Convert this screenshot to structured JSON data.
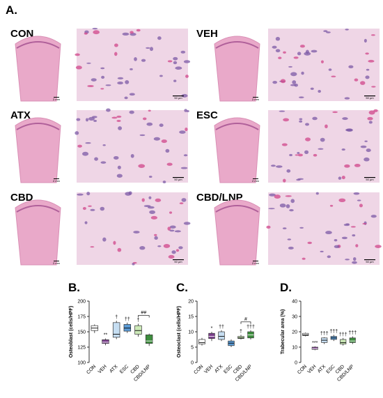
{
  "figure_label": "A.",
  "scale_bars": {
    "bone": "2 mm",
    "micro": "50 µm"
  },
  "groups": [
    "CON",
    "VEH",
    "ATX",
    "ESC",
    "CBD",
    "CBD/LNP"
  ],
  "chart_data": [
    {
      "type": "box",
      "panel": "B.",
      "y_label": "Osteoblast (cells/HPF)",
      "categories": [
        "CON",
        "VEH",
        "ATX",
        "ESC",
        "CBD",
        "CBD/LNP"
      ],
      "colors": [
        "#ffffff",
        "#7b3f8c",
        "#c6def2",
        "#5b9bd5",
        "#cdeab8",
        "#3e8e3e"
      ],
      "boxes": [
        {
          "min": 148,
          "q1": 152,
          "median": 156,
          "q3": 160,
          "max": 162
        },
        {
          "min": 128,
          "q1": 131,
          "median": 133,
          "q3": 137,
          "max": 139
        },
        {
          "min": 138,
          "q1": 141,
          "median": 146,
          "q3": 165,
          "max": 168
        },
        {
          "min": 148,
          "q1": 151,
          "median": 156,
          "q3": 162,
          "max": 165
        },
        {
          "min": 142,
          "q1": 146,
          "median": 152,
          "q3": 160,
          "max": 163
        },
        {
          "min": 127,
          "q1": 131,
          "median": 135,
          "q3": 145,
          "max": 147
        }
      ],
      "significance": [
        null,
        "**",
        "†",
        "††",
        "†",
        null
      ],
      "bracket": {
        "from": "CBD",
        "to": "CBD/LNP",
        "label": "##"
      },
      "ylim": [
        100,
        200
      ],
      "yticks": [
        100,
        125,
        150,
        175,
        200
      ]
    },
    {
      "type": "box",
      "panel": "C.",
      "y_label": "Osteoclast (cells/HPF)",
      "categories": [
        "CON",
        "VEH",
        "ATX",
        "ESC",
        "CBD",
        "CBD/LNP"
      ],
      "colors": [
        "#ffffff",
        "#7b3f8c",
        "#c6def2",
        "#5b9bd5",
        "#cdeab8",
        "#3e8e3e"
      ],
      "boxes": [
        {
          "min": 5.5,
          "q1": 6,
          "median": 6.5,
          "q3": 7.5,
          "max": 8
        },
        {
          "min": 7,
          "q1": 7.8,
          "median": 8.5,
          "q3": 9.5,
          "max": 10
        },
        {
          "min": 7,
          "q1": 7.5,
          "median": 8.5,
          "q3": 10,
          "max": 10.5
        },
        {
          "min": 5,
          "q1": 5.5,
          "median": 6.3,
          "q3": 7,
          "max": 7.5
        },
        {
          "min": 7.5,
          "q1": 7.8,
          "median": 8,
          "q3": 8.5,
          "max": 9
        },
        {
          "min": 7.5,
          "q1": 8,
          "median": 9,
          "q3": 10,
          "max": 10.5
        }
      ],
      "significance": [
        null,
        "*",
        "††",
        null,
        "†",
        "†††"
      ],
      "bracket": {
        "from": "CBD",
        "to": "CBD/LNP",
        "label": "#"
      },
      "ylim": [
        0,
        20
      ],
      "yticks": [
        0,
        5,
        10,
        15,
        20
      ]
    },
    {
      "type": "box",
      "panel": "D.",
      "y_label": "Trabecular area (%)",
      "categories": [
        "CON",
        "VEH",
        "ATX",
        "ESC",
        "CBD",
        "CBD/LNP"
      ],
      "colors": [
        "#ffffff",
        "#7b3f8c",
        "#c6def2",
        "#5b9bd5",
        "#cdeab8",
        "#3e8e3e"
      ],
      "boxes": [
        {
          "min": 17,
          "q1": 17.5,
          "median": 18,
          "q3": 19,
          "max": 19.5
        },
        {
          "min": 8,
          "q1": 8.5,
          "median": 9,
          "q3": 10,
          "max": 10.5
        },
        {
          "min": 12,
          "q1": 13,
          "median": 14.5,
          "q3": 16,
          "max": 16.5
        },
        {
          "min": 14,
          "q1": 15,
          "median": 16,
          "q3": 17,
          "max": 18
        },
        {
          "min": 11,
          "q1": 12,
          "median": 13,
          "q3": 15,
          "max": 16
        },
        {
          "min": 12,
          "q1": 13,
          "median": 14,
          "q3": 16,
          "max": 17
        }
      ],
      "significance": [
        null,
        "***",
        "†††",
        "†††",
        "†††",
        "†††"
      ],
      "bracket": null,
      "ylim": [
        0,
        40
      ],
      "yticks": [
        0,
        10,
        20,
        30,
        40
      ]
    }
  ]
}
